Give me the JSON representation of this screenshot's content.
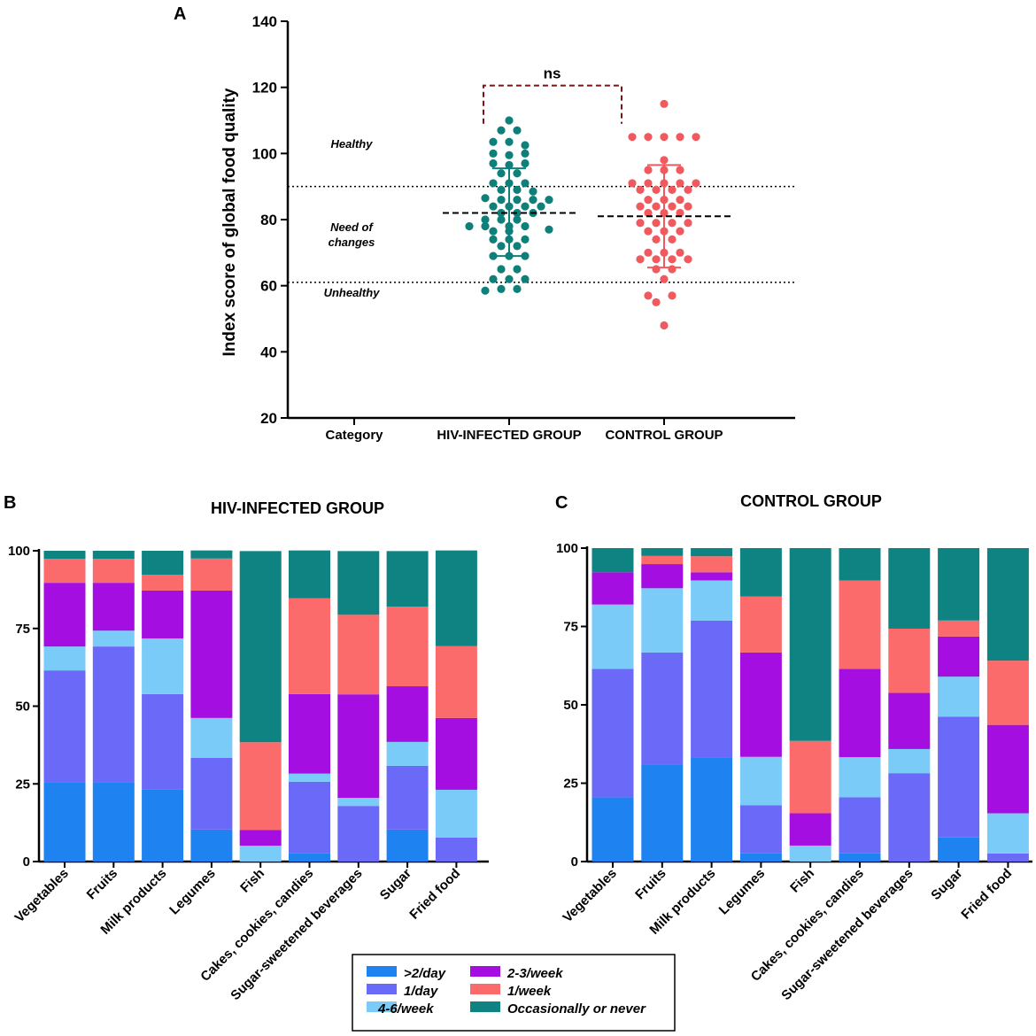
{
  "chart_data": [
    {
      "panel": "A",
      "type": "scatter",
      "ylabel": "Index score of global food quality",
      "ylim": [
        20,
        140
      ],
      "yticks": [
        20,
        40,
        60,
        80,
        100,
        120,
        140
      ],
      "categories": [
        "Category",
        "HIV-INFECTED GROUP",
        "CONTROL GROUP"
      ],
      "reference_lines": [
        90,
        61
      ],
      "zones": [
        {
          "label": "Healthy",
          "y": 103
        },
        {
          "label": "Need of\nchanges",
          "y": 76
        },
        {
          "label": "Unhealthy",
          "y": 58
        }
      ],
      "significance": {
        "label": "ns",
        "between": [
          "HIV-INFECTED GROUP",
          "CONTROL GROUP"
        ],
        "y": 120
      },
      "series": [
        {
          "name": "HIV-INFECTED GROUP",
          "color": "#0f7f7a",
          "mean": 82,
          "sd_low": 69,
          "sd_high": 95.5,
          "points": [
            {
              "dx": 0,
              "y": 110
            },
            {
              "dx": -1,
              "y": 107
            },
            {
              "dx": 1,
              "y": 107
            },
            {
              "dx": -2,
              "y": 103.5
            },
            {
              "dx": 0,
              "y": 103.5
            },
            {
              "dx": 2,
              "y": 102.5
            },
            {
              "dx": -2,
              "y": 100
            },
            {
              "dx": 0,
              "y": 99.5
            },
            {
              "dx": 2,
              "y": 100
            },
            {
              "dx": -2,
              "y": 97
            },
            {
              "dx": 0,
              "y": 96.5
            },
            {
              "dx": 2,
              "y": 97
            },
            {
              "dx": -1,
              "y": 94
            },
            {
              "dx": 1,
              "y": 94
            },
            {
              "dx": -2,
              "y": 91
            },
            {
              "dx": 0,
              "y": 91
            },
            {
              "dx": 2,
              "y": 91
            },
            {
              "dx": -1,
              "y": 89
            },
            {
              "dx": 1,
              "y": 89
            },
            {
              "dx": 3,
              "y": 88.5
            },
            {
              "dx": -3,
              "y": 86.5
            },
            {
              "dx": -1,
              "y": 86
            },
            {
              "dx": 1,
              "y": 86
            },
            {
              "dx": 3,
              "y": 86
            },
            {
              "dx": 5,
              "y": 86
            },
            {
              "dx": -2,
              "y": 84
            },
            {
              "dx": 0,
              "y": 84
            },
            {
              "dx": 2,
              "y": 84
            },
            {
              "dx": 4,
              "y": 84
            },
            {
              "dx": -1,
              "y": 82
            },
            {
              "dx": 1,
              "y": 82
            },
            {
              "dx": 3,
              "y": 82
            },
            {
              "dx": -3,
              "y": 80
            },
            {
              "dx": -1,
              "y": 80
            },
            {
              "dx": 1,
              "y": 80
            },
            {
              "dx": -5,
              "y": 78
            },
            {
              "dx": -3,
              "y": 78
            },
            {
              "dx": 0,
              "y": 78
            },
            {
              "dx": 2,
              "y": 78
            },
            {
              "dx": -2,
              "y": 76.5
            },
            {
              "dx": 0,
              "y": 76.5
            },
            {
              "dx": 5,
              "y": 77
            },
            {
              "dx": -2,
              "y": 74
            },
            {
              "dx": 0,
              "y": 74
            },
            {
              "dx": 2,
              "y": 74
            },
            {
              "dx": -1,
              "y": 72
            },
            {
              "dx": 1,
              "y": 72
            },
            {
              "dx": -2,
              "y": 69
            },
            {
              "dx": 0,
              "y": 69
            },
            {
              "dx": 2,
              "y": 69
            },
            {
              "dx": -1,
              "y": 65
            },
            {
              "dx": 1,
              "y": 65
            },
            {
              "dx": -2,
              "y": 62
            },
            {
              "dx": 0,
              "y": 62
            },
            {
              "dx": 2,
              "y": 62
            },
            {
              "dx": -1,
              "y": 59
            },
            {
              "dx": 1,
              "y": 59
            },
            {
              "dx": -3,
              "y": 58.5
            }
          ]
        },
        {
          "name": "CONTROL GROUP",
          "color": "#f05a5e",
          "mean": 81,
          "sd_low": 65.5,
          "sd_high": 96.5,
          "points": [
            {
              "dx": 0,
              "y": 115
            },
            {
              "dx": -4,
              "y": 105
            },
            {
              "dx": -2,
              "y": 105
            },
            {
              "dx": 0,
              "y": 105
            },
            {
              "dx": 2,
              "y": 105
            },
            {
              "dx": 4,
              "y": 105
            },
            {
              "dx": 0,
              "y": 98
            },
            {
              "dx": -2,
              "y": 95
            },
            {
              "dx": 0,
              "y": 95
            },
            {
              "dx": 2,
              "y": 95
            },
            {
              "dx": -4,
              "y": 91
            },
            {
              "dx": -2,
              "y": 91
            },
            {
              "dx": 0,
              "y": 91
            },
            {
              "dx": 2,
              "y": 91
            },
            {
              "dx": 4,
              "y": 91
            },
            {
              "dx": -3,
              "y": 89
            },
            {
              "dx": -1,
              "y": 89
            },
            {
              "dx": 1,
              "y": 89
            },
            {
              "dx": 3,
              "y": 89
            },
            {
              "dx": -2,
              "y": 86
            },
            {
              "dx": 0,
              "y": 86
            },
            {
              "dx": 2,
              "y": 86
            },
            {
              "dx": -3,
              "y": 84
            },
            {
              "dx": -1,
              "y": 84
            },
            {
              "dx": 1,
              "y": 84
            },
            {
              "dx": 3,
              "y": 84
            },
            {
              "dx": -2,
              "y": 82
            },
            {
              "dx": 0,
              "y": 82
            },
            {
              "dx": 2,
              "y": 82
            },
            {
              "dx": -3,
              "y": 79
            },
            {
              "dx": -1,
              "y": 79
            },
            {
              "dx": 1,
              "y": 79
            },
            {
              "dx": 3,
              "y": 79
            },
            {
              "dx": -2,
              "y": 76.5
            },
            {
              "dx": 0,
              "y": 76.5
            },
            {
              "dx": 2,
              "y": 76.5
            },
            {
              "dx": -1,
              "y": 74
            },
            {
              "dx": 1,
              "y": 74
            },
            {
              "dx": -2,
              "y": 70
            },
            {
              "dx": 0,
              "y": 70
            },
            {
              "dx": 2,
              "y": 70
            },
            {
              "dx": -3,
              "y": 68
            },
            {
              "dx": -1,
              "y": 68
            },
            {
              "dx": 1,
              "y": 68
            },
            {
              "dx": 3,
              "y": 68
            },
            {
              "dx": -1,
              "y": 65
            },
            {
              "dx": 1,
              "y": 65
            },
            {
              "dx": 0,
              "y": 62
            },
            {
              "dx": -2,
              "y": 57
            },
            {
              "dx": 1,
              "y": 57
            },
            {
              "dx": -1,
              "y": 55
            },
            {
              "dx": 0,
              "y": 48
            }
          ]
        }
      ]
    },
    {
      "panel": "B",
      "type": "bar",
      "stacked": true,
      "title": "HIV-INFECTED GROUP",
      "ylim": [
        0,
        100
      ],
      "yticks": [
        0,
        25,
        50,
        75,
        100
      ],
      "categories": [
        "Vegetables",
        "Fruits",
        "Milk products",
        "Legumes",
        "Fish",
        "Cakes, cookies, candies",
        "Sugar-sweetened beverages",
        "Sugar",
        "Fried food"
      ],
      "series": [
        {
          "name": ">2/day",
          "color": "#1e82f0",
          "values": [
            25.6,
            25.6,
            23.1,
            10.3,
            0,
            2.6,
            0,
            10.3,
            0
          ]
        },
        {
          "name": "1/day",
          "color": "#6b69f7",
          "values": [
            35.9,
            43.6,
            30.8,
            23.1,
            0,
            23.1,
            17.9,
            20.5,
            7.7
          ]
        },
        {
          "name": "4-6/week",
          "color": "#7acbf7",
          "values": [
            7.7,
            5.1,
            17.9,
            12.8,
            5.1,
            2.6,
            2.6,
            7.7,
            15.4
          ]
        },
        {
          "name": "2-3/week",
          "color": "#a40ee0",
          "values": [
            20.5,
            15.4,
            15.4,
            41.0,
            5.1,
            25.6,
            33.3,
            17.9,
            23.1
          ]
        },
        {
          "name": "1/week",
          "color": "#fb6b6b",
          "values": [
            7.7,
            7.7,
            5.1,
            10.3,
            28.2,
            30.8,
            25.6,
            25.6,
            23.1
          ]
        },
        {
          "name": "Occasionally or never",
          "color": "#0e8382",
          "values": [
            2.6,
            2.6,
            7.7,
            2.6,
            61.5,
            15.4,
            20.5,
            17.9,
            30.8
          ]
        }
      ]
    },
    {
      "panel": "C",
      "type": "bar",
      "stacked": true,
      "title": "CONTROL GROUP",
      "ylim": [
        0,
        100
      ],
      "yticks": [
        0,
        25,
        50,
        75,
        100
      ],
      "categories": [
        "Vegetables",
        "Fruits",
        "Milk products",
        "Legumes",
        "Fish",
        "Cakes, cookies, candies",
        "Sugar-sweetened beverages",
        "Sugar",
        "Fried food"
      ],
      "series": [
        {
          "name": ">2/day",
          "color": "#1e82f0",
          "values": [
            20.5,
            30.8,
            33.3,
            2.6,
            0,
            2.6,
            0,
            7.7,
            0
          ]
        },
        {
          "name": "1/day",
          "color": "#6b69f7",
          "values": [
            41.0,
            35.9,
            43.6,
            15.4,
            0,
            17.9,
            28.2,
            38.5,
            2.6
          ]
        },
        {
          "name": "4-6/week",
          "color": "#7acbf7",
          "values": [
            20.5,
            20.5,
            12.8,
            15.4,
            5.1,
            12.8,
            7.7,
            12.8,
            12.8
          ]
        },
        {
          "name": "2-3/week",
          "color": "#a40ee0",
          "values": [
            10.3,
            7.7,
            2.6,
            33.3,
            10.3,
            28.2,
            17.9,
            12.8,
            28.2
          ]
        },
        {
          "name": "1/week",
          "color": "#fb6b6b",
          "values": [
            0,
            2.6,
            5.1,
            17.9,
            23.1,
            28.2,
            20.5,
            5.1,
            20.5
          ]
        },
        {
          "name": "Occasionally or never",
          "color": "#0e8382",
          "values": [
            7.7,
            2.5,
            2.6,
            15.4,
            61.5,
            10.3,
            25.7,
            23.1,
            35.9
          ]
        }
      ]
    }
  ],
  "panel_labels": [
    "A",
    "B",
    "C"
  ],
  "legend": [
    {
      "label": ">2/day",
      "color": "#1e82f0"
    },
    {
      "label": "2-3/week",
      "color": "#a40ee0"
    },
    {
      "label": "1/day",
      "color": "#6b69f7"
    },
    {
      "label": "1/week",
      "color": "#fb6b6b"
    },
    {
      "label": "4-6/week",
      "color": "#7acbf7"
    },
    {
      "label": "Occasionally or never",
      "color": "#0e8382"
    }
  ]
}
